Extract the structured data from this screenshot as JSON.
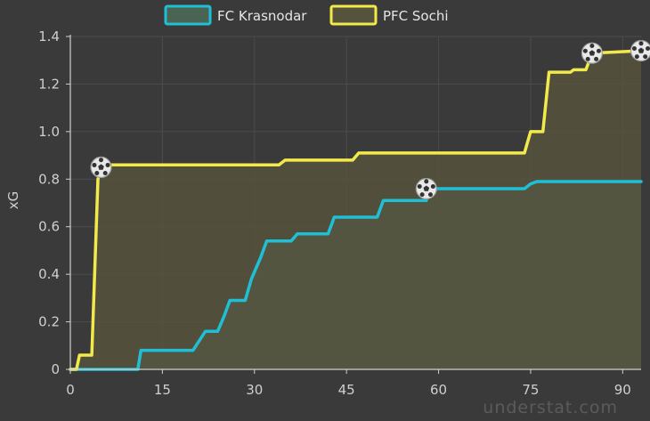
{
  "chart_data": {
    "type": "area",
    "step": true,
    "xlabel": "",
    "ylabel": "xG",
    "xlim": [
      0,
      93
    ],
    "ylim": [
      0,
      1.4
    ],
    "xticks": [
      0,
      15,
      30,
      45,
      60,
      75,
      90
    ],
    "yticks": [
      0,
      0.2,
      0.4,
      0.6,
      0.8,
      1.0,
      1.2,
      1.4
    ],
    "ytick_labels": [
      "0",
      "0.2",
      "0.4",
      "0.6",
      "0.8",
      "1.0",
      "1.2",
      "1.4"
    ],
    "grid": true,
    "legend_position": "top-center",
    "watermark": "understat.com",
    "series": [
      {
        "name": "FC Krasnodar",
        "color": "#1fc0d6",
        "fill": "#4a6353",
        "points": [
          [
            0,
            0
          ],
          [
            11,
            0
          ],
          [
            11.5,
            0.08
          ],
          [
            20,
            0.08
          ],
          [
            21,
            0.12
          ],
          [
            22,
            0.16
          ],
          [
            24,
            0.16
          ],
          [
            25,
            0.22
          ],
          [
            26,
            0.29
          ],
          [
            28.5,
            0.29
          ],
          [
            29.5,
            0.38
          ],
          [
            31,
            0.47
          ],
          [
            32,
            0.54
          ],
          [
            36,
            0.54
          ],
          [
            37,
            0.57
          ],
          [
            42,
            0.57
          ],
          [
            43,
            0.64
          ],
          [
            50,
            0.64
          ],
          [
            51,
            0.71
          ],
          [
            58,
            0.71
          ],
          [
            58.5,
            0.76
          ],
          [
            74,
            0.76
          ],
          [
            75,
            0.78
          ],
          [
            76,
            0.79
          ],
          [
            93,
            0.79
          ]
        ],
        "goals": [
          [
            58,
            0.76
          ]
        ]
      },
      {
        "name": "PFC Sochi",
        "color": "#f2ea4b",
        "fill": "#56533d",
        "points": [
          [
            0,
            0
          ],
          [
            1,
            0
          ],
          [
            1.5,
            0.06
          ],
          [
            3.5,
            0.06
          ],
          [
            4.5,
            0.8
          ],
          [
            5,
            0.85
          ],
          [
            6,
            0.86
          ],
          [
            34,
            0.86
          ],
          [
            35,
            0.88
          ],
          [
            46,
            0.88
          ],
          [
            47,
            0.91
          ],
          [
            74,
            0.91
          ],
          [
            75,
            1.0
          ],
          [
            77,
            1.0
          ],
          [
            78,
            1.25
          ],
          [
            81.5,
            1.25
          ],
          [
            82,
            1.26
          ],
          [
            84,
            1.26
          ],
          [
            85,
            1.33
          ],
          [
            93,
            1.34
          ]
        ],
        "goals": [
          [
            5,
            0.85
          ],
          [
            85,
            1.33
          ],
          [
            93,
            1.34
          ]
        ]
      }
    ]
  }
}
